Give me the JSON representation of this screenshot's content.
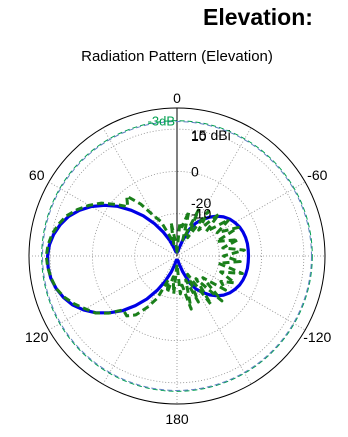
{
  "heading": "Elevation:",
  "chart_data": {
    "type": "polar-line",
    "title": "Radiation Pattern (Elevation)",
    "units": "dBi",
    "r_range": [
      -20,
      15
    ],
    "radial_ticks": [
      {
        "value": 15,
        "label": "15 dBi"
      },
      {
        "value": 10,
        "label": "10"
      },
      {
        "value": 0,
        "label": "0"
      },
      {
        "value": -10,
        "label": "-10"
      },
      {
        "value": -20,
        "label": "-20"
      }
    ],
    "angle_labels": [
      {
        "angle": 0,
        "label": "0"
      },
      {
        "angle": 60,
        "label": "60"
      },
      {
        "angle": -60,
        "label": "-60"
      },
      {
        "angle": 120,
        "label": "120"
      },
      {
        "angle": -120,
        "label": "-120"
      },
      {
        "angle": 180,
        "label": "180"
      }
    ],
    "reference_circles": [
      {
        "value": 12,
        "label": "-3dB",
        "color": "#00a050",
        "style": "dashed"
      },
      {
        "value": 11.8,
        "color": "#6080c0",
        "style": "dashed"
      }
    ],
    "grid": true,
    "series": [
      {
        "color": "#0000e6",
        "style": "solid",
        "points": [
          [
            0,
            -19
          ],
          [
            15,
            -19
          ],
          [
            20,
            -17.8
          ],
          [
            25,
            -15.9
          ],
          [
            30,
            -13.4
          ],
          [
            35,
            -10.6
          ],
          [
            40,
            -7.6
          ],
          [
            45,
            -4.7
          ],
          [
            50,
            -1.7
          ],
          [
            55,
            0.9
          ],
          [
            60,
            3.4
          ],
          [
            65,
            5.5
          ],
          [
            70,
            7.3
          ],
          [
            75,
            8.6
          ],
          [
            80,
            9.6
          ],
          [
            85,
            10.3
          ],
          [
            90,
            10.6
          ],
          [
            95,
            10.6
          ],
          [
            100,
            10.3
          ],
          [
            105,
            9.6
          ],
          [
            110,
            8.6
          ],
          [
            115,
            7.3
          ],
          [
            120,
            5.5
          ],
          [
            125,
            3.4
          ],
          [
            130,
            0.9
          ],
          [
            135,
            -1.7
          ],
          [
            140,
            -4.7
          ],
          [
            145,
            -7.6
          ],
          [
            150,
            -10.6
          ],
          [
            155,
            -13.4
          ],
          [
            160,
            -15.9
          ],
          [
            165,
            -17.8
          ],
          [
            170,
            -19
          ],
          [
            180,
            -19
          ],
          [
            185,
            -19
          ],
          [
            190,
            -19
          ],
          [
            195,
            -18
          ],
          [
            200,
            -16
          ],
          [
            205,
            -13
          ],
          [
            210,
            -11
          ],
          [
            215,
            -9.5
          ],
          [
            220,
            -8
          ],
          [
            225,
            -6.7
          ],
          [
            230,
            -5.6
          ],
          [
            235,
            -4.8
          ],
          [
            240,
            -4.2
          ],
          [
            245,
            -3.7
          ],
          [
            250,
            -3.4
          ],
          [
            255,
            -3.2
          ],
          [
            260,
            -3.1
          ],
          [
            265,
            -3.1
          ],
          [
            270,
            -3.1
          ],
          [
            275,
            -3.1
          ],
          [
            280,
            -3.1
          ],
          [
            285,
            -3.2
          ],
          [
            290,
            -3.4
          ],
          [
            295,
            -3.7
          ],
          [
            300,
            -4.2
          ],
          [
            305,
            -4.8
          ],
          [
            310,
            -5.6
          ],
          [
            315,
            -6.7
          ],
          [
            320,
            -8
          ],
          [
            325,
            -9.5
          ],
          [
            330,
            -11
          ],
          [
            335,
            -13
          ],
          [
            340,
            -16
          ],
          [
            345,
            -18
          ],
          [
            350,
            -19
          ],
          [
            355,
            -19
          ]
        ]
      },
      {
        "color": "#1a7f1a",
        "style": "dashed",
        "points": [
          [
            0,
            -19
          ],
          [
            5,
            -17
          ],
          [
            10,
            -12
          ],
          [
            15,
            -17
          ],
          [
            20,
            -15
          ],
          [
            25,
            -11
          ],
          [
            30,
            -9
          ],
          [
            35,
            -5
          ],
          [
            40,
            -1.5
          ],
          [
            45,
            -3.5
          ],
          [
            50,
            -1
          ],
          [
            55,
            1.8
          ],
          [
            60,
            4
          ],
          [
            65,
            6
          ],
          [
            70,
            7.8
          ],
          [
            75,
            9
          ],
          [
            80,
            10
          ],
          [
            85,
            10.6
          ],
          [
            90,
            10.9
          ],
          [
            95,
            10.7
          ],
          [
            100,
            10.2
          ],
          [
            105,
            9.6
          ],
          [
            110,
            8.4
          ],
          [
            115,
            6.8
          ],
          [
            120,
            5
          ],
          [
            125,
            3.5
          ],
          [
            130,
            1
          ],
          [
            135,
            -2
          ],
          [
            140,
            -1.5
          ],
          [
            145,
            -3
          ],
          [
            150,
            -6
          ],
          [
            155,
            -9
          ],
          [
            160,
            -14
          ],
          [
            165,
            -11
          ],
          [
            170,
            -15
          ],
          [
            175,
            -11
          ],
          [
            180,
            -18
          ],
          [
            185,
            -11
          ],
          [
            190,
            -13
          ],
          [
            195,
            -7
          ],
          [
            200,
            -14
          ],
          [
            205,
            -8
          ],
          [
            210,
            -15
          ],
          [
            215,
            -6
          ],
          [
            220,
            -13
          ],
          [
            225,
            -5
          ],
          [
            230,
            -12
          ],
          [
            235,
            -6
          ],
          [
            240,
            -8
          ],
          [
            245,
            -5
          ],
          [
            250,
            -9
          ],
          [
            255,
            -4
          ],
          [
            260,
            -10
          ],
          [
            265,
            -5
          ],
          [
            270,
            -9
          ],
          [
            275,
            -4
          ],
          [
            280,
            -9
          ],
          [
            285,
            -5
          ],
          [
            290,
            -10
          ],
          [
            295,
            -4
          ],
          [
            300,
            -9
          ],
          [
            305,
            -5
          ],
          [
            310,
            -11
          ],
          [
            315,
            -6
          ],
          [
            320,
            -12
          ],
          [
            325,
            -7
          ],
          [
            330,
            -15
          ],
          [
            335,
            -8
          ],
          [
            340,
            -16
          ],
          [
            345,
            -9
          ],
          [
            350,
            -13
          ],
          [
            355,
            -12
          ]
        ]
      }
    ]
  }
}
